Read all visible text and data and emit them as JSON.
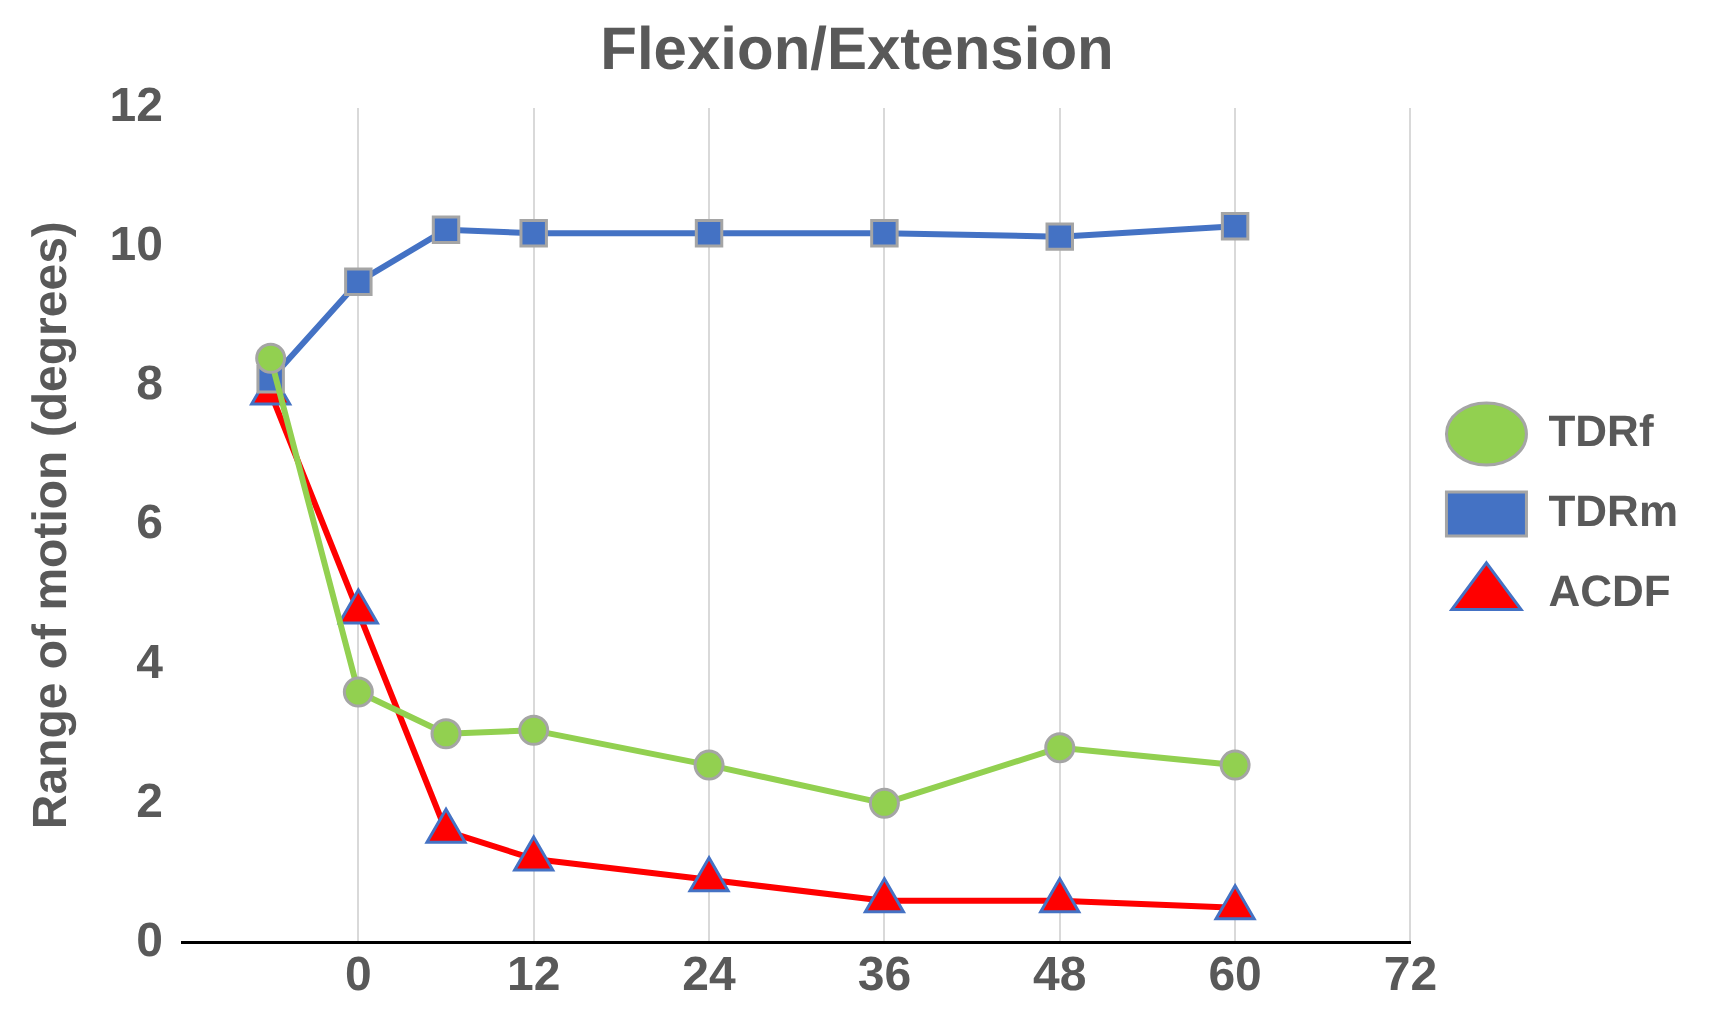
{
  "chart_data": {
    "type": "line",
    "title": "Flexion/Extension",
    "ylabel": "Range of motion (degrees)",
    "x": [
      -6,
      0,
      6,
      12,
      24,
      36,
      48,
      60
    ],
    "series": [
      {
        "name": "TDRf",
        "color": "#92d050",
        "marker": "circle",
        "values": [
          8.4,
          3.6,
          3.0,
          3.05,
          2.55,
          2.0,
          2.8,
          2.55
        ]
      },
      {
        "name": "TDRm",
        "color": "#4472c4",
        "marker": "square",
        "values": [
          8.1,
          9.5,
          10.25,
          10.2,
          10.2,
          10.2,
          10.15,
          10.3
        ]
      },
      {
        "name": "ACDF",
        "color": "#ff0000",
        "marker": "triangle",
        "values": [
          7.9,
          4.75,
          1.6,
          1.2,
          0.9,
          0.6,
          0.6,
          0.5
        ]
      }
    ],
    "xlim": [
      -12,
      72
    ],
    "xticks": [
      0,
      12,
      24,
      36,
      48,
      60,
      72
    ],
    "ylim": [
      0,
      12
    ],
    "yticks": [
      0,
      2,
      4,
      6,
      8,
      10,
      12
    ],
    "grid": "x",
    "legend": "right",
    "line_style": "solid"
  }
}
